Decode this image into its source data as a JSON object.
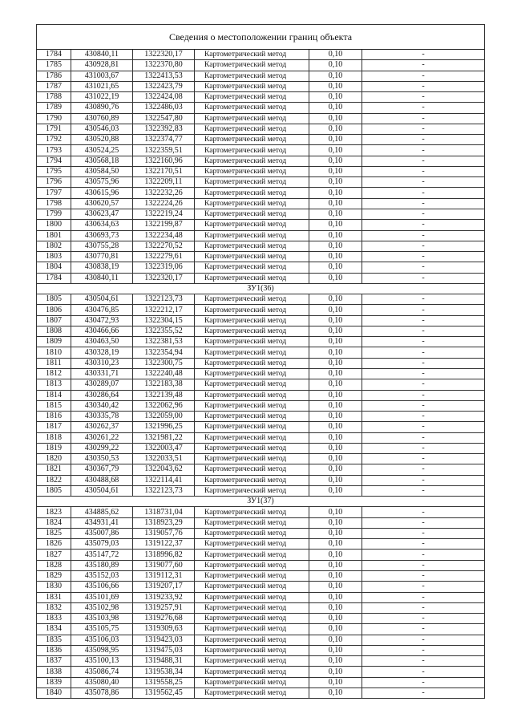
{
  "title": "Сведения о местоположении границ объекта",
  "method": "Картометрический метод",
  "accuracy": "0,10",
  "note": "-",
  "sections": [
    {
      "label": "",
      "rows": [
        [
          "1784",
          "430840,11",
          "1322320,17"
        ],
        [
          "1785",
          "430928,81",
          "1322370,80"
        ],
        [
          "1786",
          "431003,67",
          "1322413,53"
        ],
        [
          "1787",
          "431021,65",
          "1322423,79"
        ],
        [
          "1788",
          "431022,19",
          "1322424,08"
        ],
        [
          "1789",
          "430890,76",
          "1322486,03"
        ],
        [
          "1790",
          "430760,89",
          "1322547,80"
        ],
        [
          "1791",
          "430546,03",
          "1322392,83"
        ],
        [
          "1792",
          "430520,88",
          "1322374,77"
        ],
        [
          "1793",
          "430524,25",
          "1322359,51"
        ],
        [
          "1794",
          "430568,18",
          "1322160,96"
        ],
        [
          "1795",
          "430584,50",
          "1322170,51"
        ],
        [
          "1796",
          "430575,96",
          "1322209,11"
        ],
        [
          "1797",
          "430615,96",
          "1322232,26"
        ],
        [
          "1798",
          "430620,57",
          "1322224,26"
        ],
        [
          "1799",
          "430623,47",
          "1322219,24"
        ],
        [
          "1800",
          "430634,63",
          "1322199,87"
        ],
        [
          "1801",
          "430693,73",
          "1322234,48"
        ],
        [
          "1802",
          "430755,28",
          "1322270,52"
        ],
        [
          "1803",
          "430770,81",
          "1322279,61"
        ],
        [
          "1804",
          "430838,19",
          "1322319,06"
        ],
        [
          "1784",
          "430840,11",
          "1322320,17"
        ]
      ]
    },
    {
      "label": "ЗУ1(36)",
      "rows": [
        [
          "1805",
          "430504,61",
          "1322123,73"
        ],
        [
          "1806",
          "430476,85",
          "1322212,17"
        ],
        [
          "1807",
          "430472,93",
          "1322304,15"
        ],
        [
          "1808",
          "430466,66",
          "1322355,52"
        ],
        [
          "1809",
          "430463,50",
          "1322381,53"
        ],
        [
          "1810",
          "430328,19",
          "1322354,94"
        ],
        [
          "1811",
          "430310,23",
          "1322300,75"
        ],
        [
          "1812",
          "430331,71",
          "1322240,48"
        ],
        [
          "1813",
          "430289,07",
          "1322183,38"
        ],
        [
          "1814",
          "430286,64",
          "1322139,48"
        ],
        [
          "1815",
          "430340,42",
          "1322062,96"
        ],
        [
          "1816",
          "430335,78",
          "1322059,00"
        ],
        [
          "1817",
          "430262,37",
          "1321996,25"
        ],
        [
          "1818",
          "430261,22",
          "1321981,22"
        ],
        [
          "1819",
          "430299,22",
          "1322003,47"
        ],
        [
          "1820",
          "430350,53",
          "1322033,51"
        ],
        [
          "1821",
          "430367,79",
          "1322043,62"
        ],
        [
          "1822",
          "430488,68",
          "1322114,41"
        ],
        [
          "1805",
          "430504,61",
          "1322123,73"
        ]
      ]
    },
    {
      "label": "ЗУ1(37)",
      "rows": [
        [
          "1823",
          "434885,62",
          "1318731,04"
        ],
        [
          "1824",
          "434931,41",
          "1318923,29"
        ],
        [
          "1825",
          "435007,86",
          "1319057,76"
        ],
        [
          "1826",
          "435079,03",
          "1319122,37"
        ],
        [
          "1827",
          "435147,72",
          "1318996,82"
        ],
        [
          "1828",
          "435180,89",
          "1319077,60"
        ],
        [
          "1829",
          "435152,03",
          "1319112,31"
        ],
        [
          "1830",
          "435106,66",
          "1319207,17"
        ],
        [
          "1831",
          "435101,69",
          "1319233,92"
        ],
        [
          "1832",
          "435102,98",
          "1319257,91"
        ],
        [
          "1833",
          "435103,98",
          "1319276,68"
        ],
        [
          "1834",
          "435105,75",
          "1319309,63"
        ],
        [
          "1835",
          "435106,03",
          "1319423,03"
        ],
        [
          "1836",
          "435098,95",
          "1319475,03"
        ],
        [
          "1837",
          "435100,13",
          "1319488,31"
        ],
        [
          "1838",
          "435086,74",
          "1319538,34"
        ],
        [
          "1839",
          "435080,40",
          "1319558,25"
        ],
        [
          "1840",
          "435078,86",
          "1319562,45"
        ]
      ]
    }
  ]
}
